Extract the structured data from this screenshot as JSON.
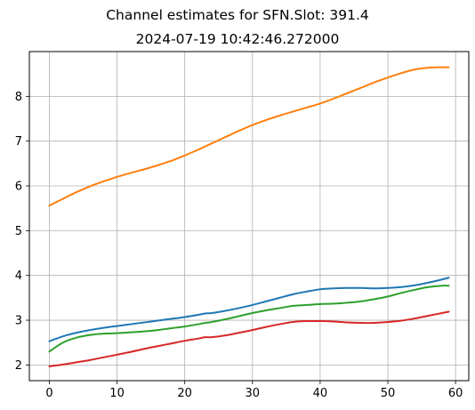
{
  "chart_data": {
    "type": "line",
    "title": "Channel estimates for SFN.Slot: 391.4",
    "subtitle": "2024-07-19 10:42:46.272000",
    "xlabel": "",
    "ylabel": "",
    "xlim": [
      -2.95,
      61.95
    ],
    "ylim": [
      1.65,
      9.0
    ],
    "xticks": [
      0,
      10,
      20,
      30,
      40,
      50,
      60
    ],
    "yticks": [
      2,
      3,
      4,
      5,
      6,
      7,
      8
    ],
    "grid": true,
    "legend": "none",
    "x": [
      0,
      2,
      4,
      6,
      8,
      10,
      12,
      14,
      16,
      18,
      20,
      22,
      23,
      24,
      26,
      28,
      30,
      32,
      34,
      36,
      38,
      40,
      42,
      44,
      46,
      48,
      50,
      52,
      54,
      56,
      58,
      59
    ],
    "series": [
      {
        "color": "#1f77b4",
        "values": [
          2.53,
          2.64,
          2.72,
          2.78,
          2.83,
          2.87,
          2.91,
          2.95,
          2.99,
          3.03,
          3.07,
          3.12,
          3.15,
          3.16,
          3.21,
          3.27,
          3.34,
          3.42,
          3.5,
          3.58,
          3.64,
          3.69,
          3.71,
          3.72,
          3.72,
          3.71,
          3.72,
          3.74,
          3.78,
          3.84,
          3.91,
          3.95
        ]
      },
      {
        "color": "#ff7f0e",
        "values": [
          5.56,
          5.71,
          5.86,
          5.99,
          6.1,
          6.2,
          6.29,
          6.37,
          6.46,
          6.56,
          6.68,
          6.81,
          6.88,
          6.95,
          7.09,
          7.23,
          7.36,
          7.47,
          7.57,
          7.66,
          7.75,
          7.84,
          7.95,
          8.07,
          8.19,
          8.31,
          8.42,
          8.52,
          8.6,
          8.64,
          8.65,
          8.65
        ]
      },
      {
        "color": "#2ca02c",
        "values": [
          2.3,
          2.5,
          2.61,
          2.67,
          2.7,
          2.71,
          2.73,
          2.75,
          2.78,
          2.82,
          2.86,
          2.91,
          2.94,
          2.96,
          3.02,
          3.09,
          3.16,
          3.22,
          3.27,
          3.32,
          3.34,
          3.36,
          3.37,
          3.39,
          3.42,
          3.47,
          3.53,
          3.61,
          3.68,
          3.74,
          3.77,
          3.77
        ]
      },
      {
        "color": "#d62728",
        "values": [
          1.97,
          2.01,
          2.06,
          2.11,
          2.17,
          2.23,
          2.29,
          2.36,
          2.42,
          2.48,
          2.54,
          2.59,
          2.62,
          2.62,
          2.66,
          2.72,
          2.78,
          2.85,
          2.91,
          2.96,
          2.98,
          2.98,
          2.97,
          2.95,
          2.94,
          2.94,
          2.96,
          2.99,
          3.04,
          3.1,
          3.16,
          3.19
        ]
      }
    ]
  }
}
